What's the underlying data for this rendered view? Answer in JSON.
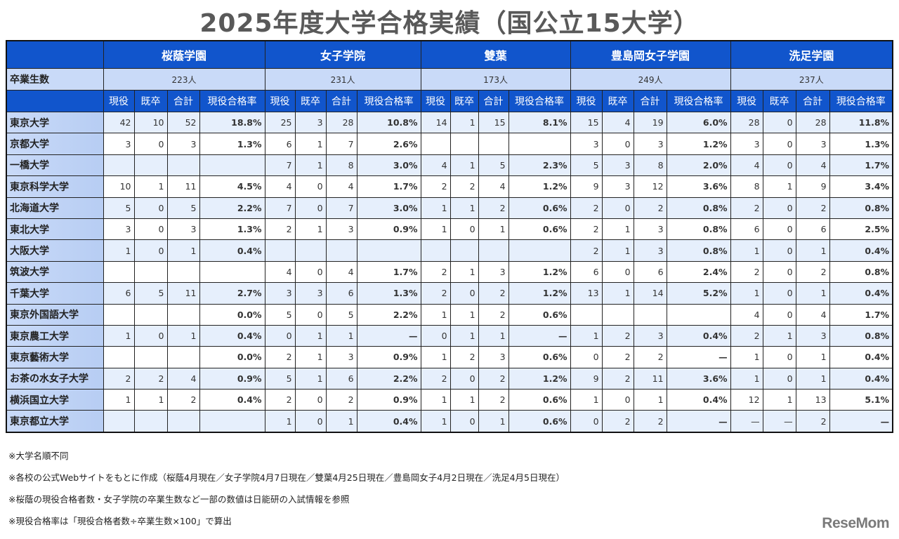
{
  "title": "2025年度大学合格実績（国公立15大学）",
  "graduates_label": "卒業生数",
  "sub_headers": [
    "現役",
    "既卒",
    "合計",
    "現役合格率"
  ],
  "schools": [
    {
      "name": "桜蔭学園",
      "graduates": "223人"
    },
    {
      "name": "女子学院",
      "graduates": "231人"
    },
    {
      "name": "雙葉",
      "graduates": "173人"
    },
    {
      "name": "豊島岡女子学園",
      "graduates": "249人"
    },
    {
      "name": "洗足学園",
      "graduates": "237人"
    }
  ],
  "rows": [
    {
      "university": "東京大学",
      "values": [
        [
          "42",
          "10",
          "52",
          "18.8%"
        ],
        [
          "25",
          "3",
          "28",
          "10.8%"
        ],
        [
          "14",
          "1",
          "15",
          "8.1%"
        ],
        [
          "15",
          "4",
          "19",
          "6.0%"
        ],
        [
          "28",
          "0",
          "28",
          "11.8%"
        ]
      ]
    },
    {
      "university": "京都大学",
      "values": [
        [
          "3",
          "0",
          "3",
          "1.3%"
        ],
        [
          "6",
          "1",
          "7",
          "2.6%"
        ],
        [
          "",
          "",
          "",
          ""
        ],
        [
          "3",
          "0",
          "3",
          "1.2%"
        ],
        [
          "3",
          "0",
          "3",
          "1.3%"
        ]
      ]
    },
    {
      "university": "一橋大学",
      "values": [
        [
          "",
          "",
          "",
          ""
        ],
        [
          "7",
          "1",
          "8",
          "3.0%"
        ],
        [
          "4",
          "1",
          "5",
          "2.3%"
        ],
        [
          "5",
          "3",
          "8",
          "2.0%"
        ],
        [
          "4",
          "0",
          "4",
          "1.7%"
        ]
      ]
    },
    {
      "university": "東京科学大学",
      "values": [
        [
          "10",
          "1",
          "11",
          "4.5%"
        ],
        [
          "4",
          "0",
          "4",
          "1.7%"
        ],
        [
          "2",
          "2",
          "4",
          "1.2%"
        ],
        [
          "9",
          "3",
          "12",
          "3.6%"
        ],
        [
          "8",
          "1",
          "9",
          "3.4%"
        ]
      ]
    },
    {
      "university": "北海道大学",
      "values": [
        [
          "5",
          "0",
          "5",
          "2.2%"
        ],
        [
          "7",
          "0",
          "7",
          "3.0%"
        ],
        [
          "1",
          "1",
          "2",
          "0.6%"
        ],
        [
          "2",
          "0",
          "2",
          "0.8%"
        ],
        [
          "2",
          "0",
          "2",
          "0.8%"
        ]
      ]
    },
    {
      "university": "東北大学",
      "values": [
        [
          "3",
          "0",
          "3",
          "1.3%"
        ],
        [
          "2",
          "1",
          "3",
          "0.9%"
        ],
        [
          "1",
          "0",
          "1",
          "0.6%"
        ],
        [
          "2",
          "1",
          "3",
          "0.8%"
        ],
        [
          "6",
          "0",
          "6",
          "2.5%"
        ]
      ]
    },
    {
      "university": "大阪大学",
      "values": [
        [
          "1",
          "0",
          "1",
          "0.4%"
        ],
        [
          "",
          "",
          "",
          ""
        ],
        [
          "",
          "",
          "",
          ""
        ],
        [
          "2",
          "1",
          "3",
          "0.8%"
        ],
        [
          "1",
          "0",
          "1",
          "0.4%"
        ]
      ]
    },
    {
      "university": "筑波大学",
      "values": [
        [
          "",
          "",
          "",
          ""
        ],
        [
          "4",
          "0",
          "4",
          "1.7%"
        ],
        [
          "2",
          "1",
          "3",
          "1.2%"
        ],
        [
          "6",
          "0",
          "6",
          "2.4%"
        ],
        [
          "2",
          "0",
          "2",
          "0.8%"
        ]
      ]
    },
    {
      "university": "千葉大学",
      "values": [
        [
          "6",
          "5",
          "11",
          "2.7%"
        ],
        [
          "3",
          "3",
          "6",
          "1.3%"
        ],
        [
          "2",
          "0",
          "2",
          "1.2%"
        ],
        [
          "13",
          "1",
          "14",
          "5.2%"
        ],
        [
          "1",
          "0",
          "1",
          "0.4%"
        ]
      ]
    },
    {
      "university": "東京外国語大学",
      "values": [
        [
          "",
          "",
          "",
          "0.0%"
        ],
        [
          "5",
          "0",
          "5",
          "2.2%"
        ],
        [
          "1",
          "1",
          "2",
          "0.6%"
        ],
        [
          "",
          "",
          "",
          ""
        ],
        [
          "4",
          "0",
          "4",
          "1.7%"
        ]
      ]
    },
    {
      "university": "東京農工大学",
      "values": [
        [
          "1",
          "0",
          "1",
          "0.4%"
        ],
        [
          "0",
          "1",
          "1",
          "—"
        ],
        [
          "0",
          "1",
          "1",
          "—"
        ],
        [
          "1",
          "2",
          "3",
          "0.4%"
        ],
        [
          "2",
          "1",
          "3",
          "0.8%"
        ]
      ]
    },
    {
      "university": "東京藝術大学",
      "values": [
        [
          "",
          "",
          "",
          "0.0%"
        ],
        [
          "2",
          "1",
          "3",
          "0.9%"
        ],
        [
          "1",
          "2",
          "3",
          "0.6%"
        ],
        [
          "0",
          "2",
          "2",
          "—"
        ],
        [
          "1",
          "0",
          "1",
          "0.4%"
        ]
      ]
    },
    {
      "university": "お茶の水女子大学",
      "values": [
        [
          "2",
          "2",
          "4",
          "0.9%"
        ],
        [
          "5",
          "1",
          "6",
          "2.2%"
        ],
        [
          "2",
          "0",
          "2",
          "1.2%"
        ],
        [
          "9",
          "2",
          "11",
          "3.6%"
        ],
        [
          "1",
          "0",
          "1",
          "0.4%"
        ]
      ]
    },
    {
      "university": "横浜国立大学",
      "values": [
        [
          "1",
          "1",
          "2",
          "0.4%"
        ],
        [
          "2",
          "0",
          "2",
          "0.9%"
        ],
        [
          "1",
          "1",
          "2",
          "0.6%"
        ],
        [
          "1",
          "0",
          "1",
          "0.4%"
        ],
        [
          "12",
          "1",
          "13",
          "5.1%"
        ]
      ]
    },
    {
      "university": "東京都立大学",
      "values": [
        [
          "",
          "",
          "",
          ""
        ],
        [
          "1",
          "0",
          "1",
          "0.4%"
        ],
        [
          "1",
          "0",
          "1",
          "0.6%"
        ],
        [
          "0",
          "2",
          "2",
          "—"
        ],
        [
          "—",
          "—",
          "2",
          "—"
        ]
      ]
    }
  ],
  "notes": [
    "※大学名順不同",
    "※各校の公式Webサイトをもとに作成（桜蔭4月現在／女子学院4月7日現在／雙葉4月25日現在／豊島岡女子4月2日現在／洗足4月5日現在）",
    "※桜蔭の現役合格者数・女子学院の卒業生数など一部の数値は日能研の入試情報を参照",
    "※現役合格率は「現役合格者数÷卒業生数×100」で算出"
  ],
  "logo_text": "ReseMom"
}
